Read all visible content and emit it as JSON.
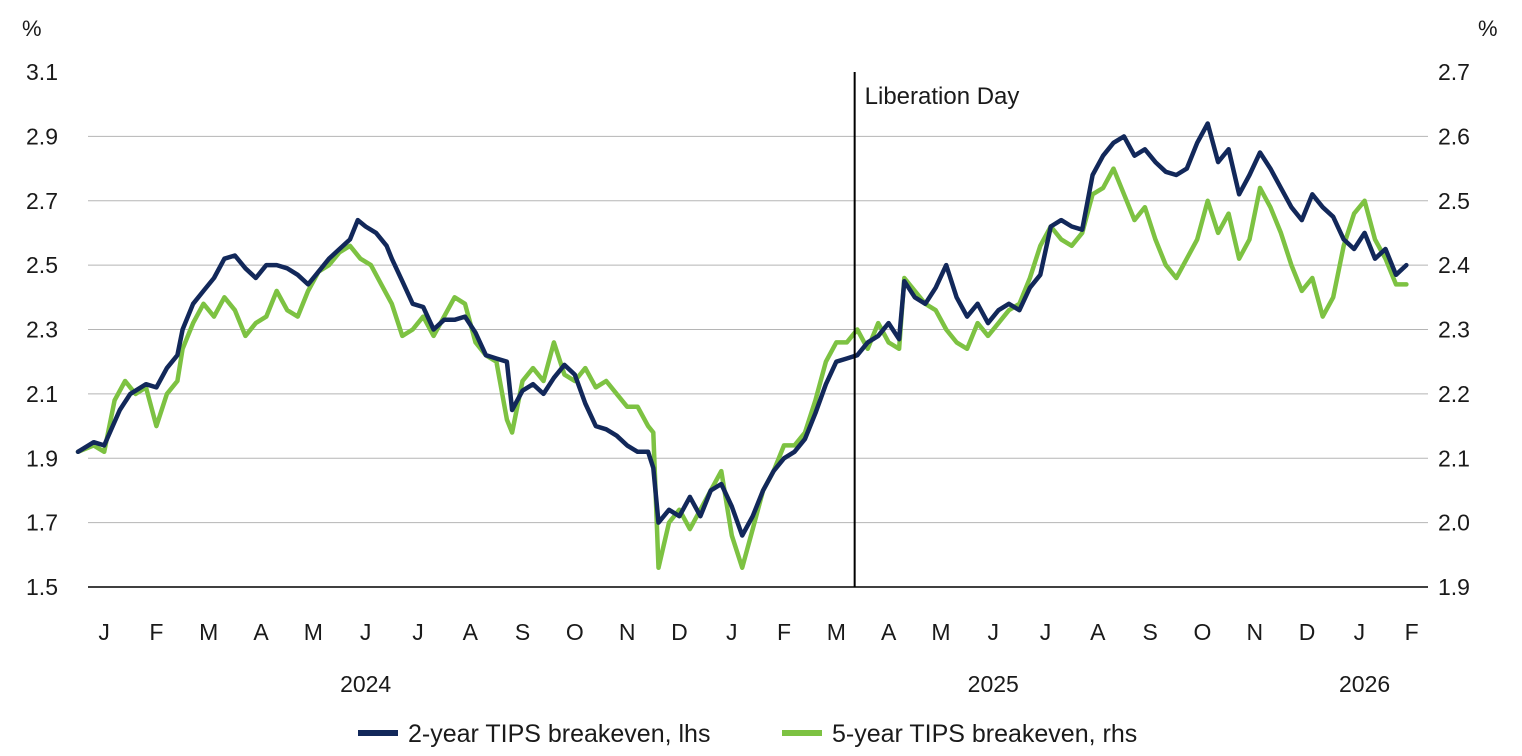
{
  "chart_data": {
    "type": "line",
    "title": "",
    "xlabel": "",
    "units": {
      "left": "%",
      "right": "%"
    },
    "left_axis": {
      "ylim": [
        1.5,
        3.1
      ],
      "ticks": [
        "1.5",
        "1.7",
        "1.9",
        "2.1",
        "2.3",
        "2.5",
        "2.7",
        "2.9",
        "3.1"
      ]
    },
    "right_axis": {
      "ylim": [
        1.9,
        2.7
      ],
      "ticks": [
        "1.9",
        "2.0",
        "2.1",
        "2.2",
        "2.3",
        "2.4",
        "2.5",
        "2.6",
        "2.7"
      ]
    },
    "x_range_months": [
      0,
      25.4
    ],
    "month_labels": [
      "J",
      "F",
      "M",
      "A",
      "M",
      "J",
      "J",
      "A",
      "S",
      "O",
      "N",
      "D",
      "J",
      "F",
      "M",
      "A",
      "M",
      "J",
      "J",
      "A",
      "S",
      "O",
      "N",
      "D",
      "J",
      "F"
    ],
    "year_labels": [
      {
        "label": "2024",
        "month_center": 5.5
      },
      {
        "label": "2025",
        "month_center": 17.5
      },
      {
        "label": "2026",
        "month_center": 24.6
      }
    ],
    "annotation": {
      "label": "Liberation Day",
      "month": 14.85
    },
    "gridlines": true,
    "legend_position": "bottom",
    "series": [
      {
        "name": "2-year TIPS breakeven, lhs",
        "axis": "left",
        "color": "#12285a",
        "points": [
          [
            0.0,
            1.92
          ],
          [
            0.3,
            1.95
          ],
          [
            0.5,
            1.94
          ],
          [
            0.8,
            2.05
          ],
          [
            1.0,
            2.1
          ],
          [
            1.3,
            2.13
          ],
          [
            1.5,
            2.12
          ],
          [
            1.7,
            2.18
          ],
          [
            1.9,
            2.22
          ],
          [
            2.0,
            2.3
          ],
          [
            2.2,
            2.38
          ],
          [
            2.4,
            2.42
          ],
          [
            2.6,
            2.46
          ],
          [
            2.8,
            2.52
          ],
          [
            3.0,
            2.53
          ],
          [
            3.2,
            2.49
          ],
          [
            3.4,
            2.46
          ],
          [
            3.6,
            2.5
          ],
          [
            3.8,
            2.5
          ],
          [
            4.0,
            2.49
          ],
          [
            4.2,
            2.47
          ],
          [
            4.4,
            2.44
          ],
          [
            4.6,
            2.48
          ],
          [
            4.8,
            2.52
          ],
          [
            5.0,
            2.55
          ],
          [
            5.2,
            2.58
          ],
          [
            5.35,
            2.64
          ],
          [
            5.5,
            2.62
          ],
          [
            5.7,
            2.6
          ],
          [
            5.9,
            2.56
          ],
          [
            6.0,
            2.52
          ],
          [
            6.2,
            2.45
          ],
          [
            6.4,
            2.38
          ],
          [
            6.6,
            2.37
          ],
          [
            6.8,
            2.3
          ],
          [
            7.0,
            2.33
          ],
          [
            7.2,
            2.33
          ],
          [
            7.4,
            2.34
          ],
          [
            7.6,
            2.29
          ],
          [
            7.8,
            2.22
          ],
          [
            8.0,
            2.21
          ],
          [
            8.2,
            2.2
          ],
          [
            8.3,
            2.05
          ],
          [
            8.5,
            2.11
          ],
          [
            8.7,
            2.13
          ],
          [
            8.9,
            2.1
          ],
          [
            9.1,
            2.15
          ],
          [
            9.3,
            2.19
          ],
          [
            9.5,
            2.16
          ],
          [
            9.7,
            2.07
          ],
          [
            9.9,
            2.0
          ],
          [
            10.1,
            1.99
          ],
          [
            10.3,
            1.97
          ],
          [
            10.5,
            1.94
          ],
          [
            10.7,
            1.92
          ],
          [
            10.9,
            1.92
          ],
          [
            11.0,
            1.87
          ],
          [
            11.1,
            1.7
          ],
          [
            11.3,
            1.74
          ],
          [
            11.5,
            1.72
          ],
          [
            11.7,
            1.78
          ],
          [
            11.9,
            1.72
          ],
          [
            12.1,
            1.8
          ],
          [
            12.3,
            1.82
          ],
          [
            12.5,
            1.75
          ],
          [
            12.7,
            1.66
          ],
          [
            12.9,
            1.72
          ],
          [
            13.1,
            1.8
          ],
          [
            13.3,
            1.86
          ],
          [
            13.5,
            1.9
          ],
          [
            13.7,
            1.92
          ],
          [
            13.9,
            1.96
          ],
          [
            14.1,
            2.04
          ],
          [
            14.3,
            2.13
          ],
          [
            14.5,
            2.2
          ],
          [
            14.7,
            2.21
          ],
          [
            14.9,
            2.22
          ],
          [
            15.1,
            2.26
          ],
          [
            15.3,
            2.28
          ],
          [
            15.5,
            2.32
          ],
          [
            15.7,
            2.27
          ],
          [
            15.8,
            2.45
          ],
          [
            16.0,
            2.4
          ],
          [
            16.2,
            2.38
          ],
          [
            16.4,
            2.43
          ],
          [
            16.6,
            2.5
          ],
          [
            16.8,
            2.4
          ],
          [
            17.0,
            2.34
          ],
          [
            17.2,
            2.38
          ],
          [
            17.4,
            2.32
          ],
          [
            17.6,
            2.36
          ],
          [
            17.8,
            2.38
          ],
          [
            18.0,
            2.36
          ],
          [
            18.2,
            2.43
          ],
          [
            18.4,
            2.47
          ],
          [
            18.6,
            2.62
          ],
          [
            18.8,
            2.64
          ],
          [
            19.0,
            2.62
          ],
          [
            19.2,
            2.61
          ],
          [
            19.4,
            2.78
          ],
          [
            19.6,
            2.84
          ],
          [
            19.8,
            2.88
          ],
          [
            20.0,
            2.9
          ],
          [
            20.2,
            2.84
          ],
          [
            20.4,
            2.86
          ],
          [
            20.6,
            2.82
          ],
          [
            20.8,
            2.79
          ],
          [
            21.0,
            2.78
          ],
          [
            21.2,
            2.8
          ],
          [
            21.4,
            2.88
          ],
          [
            21.6,
            2.94
          ],
          [
            21.8,
            2.82
          ],
          [
            22.0,
            2.86
          ],
          [
            22.2,
            2.72
          ],
          [
            22.4,
            2.78
          ],
          [
            22.6,
            2.85
          ],
          [
            22.8,
            2.8
          ],
          [
            23.0,
            2.74
          ],
          [
            23.2,
            2.68
          ],
          [
            23.4,
            2.64
          ],
          [
            23.6,
            2.72
          ],
          [
            23.8,
            2.68
          ],
          [
            24.0,
            2.65
          ],
          [
            24.2,
            2.58
          ],
          [
            24.4,
            2.55
          ],
          [
            24.6,
            2.6
          ],
          [
            24.8,
            2.52
          ],
          [
            25.0,
            2.55
          ],
          [
            25.2,
            2.47
          ],
          [
            25.4,
            2.5
          ]
        ]
      },
      {
        "name": "5-year TIPS breakeven, rhs",
        "axis": "right",
        "color": "#7dc242",
        "points": [
          [
            0.0,
            2.11
          ],
          [
            0.3,
            2.12
          ],
          [
            0.5,
            2.11
          ],
          [
            0.7,
            2.19
          ],
          [
            0.9,
            2.22
          ],
          [
            1.1,
            2.2
          ],
          [
            1.3,
            2.21
          ],
          [
            1.5,
            2.15
          ],
          [
            1.7,
            2.2
          ],
          [
            1.9,
            2.22
          ],
          [
            2.0,
            2.27
          ],
          [
            2.2,
            2.31
          ],
          [
            2.4,
            2.34
          ],
          [
            2.6,
            2.32
          ],
          [
            2.8,
            2.35
          ],
          [
            3.0,
            2.33
          ],
          [
            3.2,
            2.29
          ],
          [
            3.4,
            2.31
          ],
          [
            3.6,
            2.32
          ],
          [
            3.8,
            2.36
          ],
          [
            4.0,
            2.33
          ],
          [
            4.2,
            2.32
          ],
          [
            4.4,
            2.36
          ],
          [
            4.6,
            2.39
          ],
          [
            4.8,
            2.4
          ],
          [
            5.0,
            2.42
          ],
          [
            5.2,
            2.43
          ],
          [
            5.4,
            2.41
          ],
          [
            5.6,
            2.4
          ],
          [
            5.8,
            2.37
          ],
          [
            6.0,
            2.34
          ],
          [
            6.2,
            2.29
          ],
          [
            6.4,
            2.3
          ],
          [
            6.6,
            2.32
          ],
          [
            6.8,
            2.29
          ],
          [
            7.0,
            2.32
          ],
          [
            7.2,
            2.35
          ],
          [
            7.4,
            2.34
          ],
          [
            7.6,
            2.28
          ],
          [
            7.8,
            2.26
          ],
          [
            8.0,
            2.25
          ],
          [
            8.2,
            2.16
          ],
          [
            8.3,
            2.14
          ],
          [
            8.5,
            2.22
          ],
          [
            8.7,
            2.24
          ],
          [
            8.9,
            2.22
          ],
          [
            9.1,
            2.28
          ],
          [
            9.3,
            2.23
          ],
          [
            9.5,
            2.22
          ],
          [
            9.7,
            2.24
          ],
          [
            9.9,
            2.21
          ],
          [
            10.1,
            2.22
          ],
          [
            10.3,
            2.2
          ],
          [
            10.5,
            2.18
          ],
          [
            10.7,
            2.18
          ],
          [
            10.9,
            2.15
          ],
          [
            11.0,
            2.14
          ],
          [
            11.1,
            1.93
          ],
          [
            11.3,
            2.0
          ],
          [
            11.5,
            2.02
          ],
          [
            11.7,
            1.99
          ],
          [
            11.9,
            2.02
          ],
          [
            12.1,
            2.05
          ],
          [
            12.3,
            2.08
          ],
          [
            12.5,
            1.98
          ],
          [
            12.7,
            1.93
          ],
          [
            12.9,
            1.99
          ],
          [
            13.1,
            2.05
          ],
          [
            13.3,
            2.08
          ],
          [
            13.5,
            2.12
          ],
          [
            13.7,
            2.12
          ],
          [
            13.9,
            2.14
          ],
          [
            14.1,
            2.19
          ],
          [
            14.3,
            2.25
          ],
          [
            14.5,
            2.28
          ],
          [
            14.7,
            2.28
          ],
          [
            14.9,
            2.3
          ],
          [
            15.1,
            2.27
          ],
          [
            15.3,
            2.31
          ],
          [
            15.5,
            2.28
          ],
          [
            15.7,
            2.27
          ],
          [
            15.8,
            2.38
          ],
          [
            16.0,
            2.36
          ],
          [
            16.2,
            2.34
          ],
          [
            16.4,
            2.33
          ],
          [
            16.6,
            2.3
          ],
          [
            16.8,
            2.28
          ],
          [
            17.0,
            2.27
          ],
          [
            17.2,
            2.31
          ],
          [
            17.4,
            2.29
          ],
          [
            17.6,
            2.31
          ],
          [
            17.8,
            2.33
          ],
          [
            18.0,
            2.34
          ],
          [
            18.2,
            2.38
          ],
          [
            18.4,
            2.43
          ],
          [
            18.6,
            2.46
          ],
          [
            18.8,
            2.44
          ],
          [
            19.0,
            2.43
          ],
          [
            19.2,
            2.45
          ],
          [
            19.4,
            2.51
          ],
          [
            19.6,
            2.52
          ],
          [
            19.8,
            2.55
          ],
          [
            20.0,
            2.51
          ],
          [
            20.2,
            2.47
          ],
          [
            20.4,
            2.49
          ],
          [
            20.6,
            2.44
          ],
          [
            20.8,
            2.4
          ],
          [
            21.0,
            2.38
          ],
          [
            21.2,
            2.41
          ],
          [
            21.4,
            2.44
          ],
          [
            21.6,
            2.5
          ],
          [
            21.8,
            2.45
          ],
          [
            22.0,
            2.48
          ],
          [
            22.2,
            2.41
          ],
          [
            22.4,
            2.44
          ],
          [
            22.6,
            2.52
          ],
          [
            22.8,
            2.49
          ],
          [
            23.0,
            2.45
          ],
          [
            23.2,
            2.4
          ],
          [
            23.4,
            2.36
          ],
          [
            23.6,
            2.38
          ],
          [
            23.8,
            2.32
          ],
          [
            24.0,
            2.35
          ],
          [
            24.2,
            2.43
          ],
          [
            24.4,
            2.48
          ],
          [
            24.6,
            2.5
          ],
          [
            24.8,
            2.44
          ],
          [
            25.0,
            2.41
          ],
          [
            25.2,
            2.37
          ],
          [
            25.4,
            2.37
          ]
        ]
      }
    ]
  }
}
